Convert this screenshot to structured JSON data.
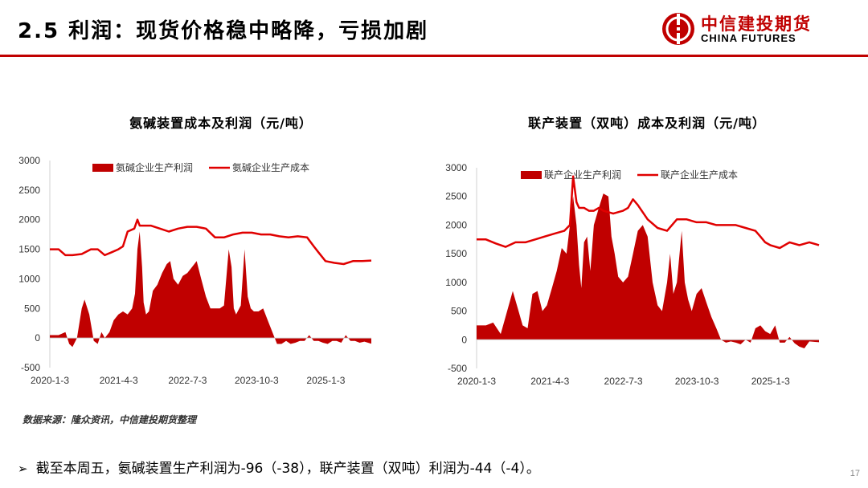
{
  "header": {
    "title": "2.5 利润：现货价格稳中略降，亏损加剧",
    "logo_cn": "中信建投期货",
    "logo_en": "CHINA FUTURES",
    "accent_color": "#c00000"
  },
  "chart_data": [
    {
      "type": "area",
      "title": "氨碱装置成本及利润（元/吨）",
      "xlabel": "",
      "ylabel": "",
      "ylim": [
        -500,
        3000
      ],
      "yticks": [
        "3000",
        "2500",
        "2000",
        "1500",
        "1000",
        "500",
        "0",
        "-500"
      ],
      "xticks": [
        "2020-1-3",
        "2021-4-3",
        "2022-7-3",
        "2023-10-3",
        "2025-1-3"
      ],
      "xrange": [
        "2020-01-03",
        "2025-10-31"
      ],
      "legend_position": "top",
      "series": [
        {
          "name": "氨碱企业生产利润",
          "kind": "area",
          "color": "#c00000",
          "x": [
            "2020-01-03",
            "2020-03-01",
            "2020-04-15",
            "2020-05-10",
            "2020-06-01",
            "2020-07-01",
            "2020-08-01",
            "2020-08-20",
            "2020-09-20",
            "2020-10-20",
            "2020-11-15",
            "2020-12-10",
            "2021-01-01",
            "2021-02-01",
            "2021-03-01",
            "2021-04-01",
            "2021-05-01",
            "2021-06-01",
            "2021-07-01",
            "2021-07-20",
            "2021-08-05",
            "2021-08-20",
            "2021-09-05",
            "2021-09-15",
            "2021-10-01",
            "2021-10-20",
            "2021-11-15",
            "2021-12-15",
            "2022-01-15",
            "2022-02-15",
            "2022-03-10",
            "2022-04-01",
            "2022-05-01",
            "2022-06-01",
            "2022-07-01",
            "2022-08-01",
            "2022-09-01",
            "2022-10-01",
            "2022-11-01",
            "2022-12-01",
            "2023-01-01",
            "2023-02-01",
            "2023-03-01",
            "2023-04-01",
            "2023-04-20",
            "2023-05-05",
            "2023-05-20",
            "2023-06-20",
            "2023-07-15",
            "2023-08-05",
            "2023-08-25",
            "2023-09-15",
            "2023-10-15",
            "2023-11-15",
            "2023-12-15",
            "2024-01-15",
            "2024-02-15",
            "2024-03-15",
            "2024-04-15",
            "2024-05-15",
            "2024-06-15",
            "2024-07-15",
            "2024-08-15",
            "2024-09-15",
            "2024-10-15",
            "2024-11-15",
            "2024-12-15",
            "2025-01-15",
            "2025-02-15",
            "2025-03-15",
            "2025-04-15",
            "2025-05-15",
            "2025-06-15",
            "2025-07-15",
            "2025-08-15",
            "2025-09-15",
            "2025-10-31"
          ],
          "values": [
            50,
            50,
            100,
            -100,
            -150,
            0,
            500,
            650,
            400,
            -50,
            -100,
            100,
            0,
            100,
            300,
            400,
            450,
            400,
            500,
            750,
            1500,
            1800,
            1200,
            600,
            400,
            450,
            800,
            900,
            1100,
            1250,
            1300,
            1000,
            900,
            1050,
            1100,
            1200,
            1300,
            1000,
            700,
            500,
            500,
            500,
            550,
            1500,
            1200,
            500,
            400,
            550,
            1500,
            700,
            500,
            450,
            450,
            500,
            300,
            100,
            -100,
            -100,
            -50,
            -100,
            -80,
            -50,
            -50,
            50,
            -50,
            -50,
            -80,
            -100,
            -50,
            -50,
            -80,
            50,
            -50,
            -50,
            -80,
            -60,
            -96
          ]
        },
        {
          "name": "氨碱企业生产成本",
          "kind": "line",
          "color": "#e00000",
          "x": [
            "2020-01-03",
            "2020-03-01",
            "2020-04-15",
            "2020-06-01",
            "2020-08-01",
            "2020-10-01",
            "2020-11-15",
            "2021-01-01",
            "2021-02-15",
            "2021-04-01",
            "2021-05-01",
            "2021-06-01",
            "2021-07-15",
            "2021-08-05",
            "2021-08-20",
            "2021-09-15",
            "2021-11-01",
            "2022-01-01",
            "2022-03-01",
            "2022-05-01",
            "2022-07-01",
            "2022-09-01",
            "2022-11-01",
            "2023-01-01",
            "2023-03-01",
            "2023-05-01",
            "2023-07-01",
            "2023-09-01",
            "2023-11-01",
            "2024-01-01",
            "2024-03-01",
            "2024-05-01",
            "2024-07-01",
            "2024-09-01",
            "2024-10-15",
            "2024-11-15",
            "2025-01-01",
            "2025-03-01",
            "2025-05-01",
            "2025-07-01",
            "2025-09-01",
            "2025-10-31"
          ],
          "values": [
            1500,
            1500,
            1400,
            1400,
            1420,
            1500,
            1500,
            1400,
            1450,
            1500,
            1550,
            1800,
            1850,
            2000,
            1900,
            1900,
            1900,
            1850,
            1800,
            1850,
            1880,
            1880,
            1850,
            1700,
            1700,
            1750,
            1780,
            1780,
            1750,
            1750,
            1720,
            1700,
            1720,
            1700,
            1550,
            1450,
            1300,
            1270,
            1250,
            1300,
            1300,
            1310
          ]
        }
      ]
    },
    {
      "type": "area",
      "title": "联产装置（双吨）成本及利润（元/吨）",
      "xlabel": "",
      "ylabel": "",
      "ylim": [
        -500,
        3000
      ],
      "yticks": [
        "3000",
        "2500",
        "2000",
        "1500",
        "1000",
        "500",
        "0",
        "-500"
      ],
      "xticks": [
        "2020-1-3",
        "2021-4-3",
        "2022-7-3",
        "2023-10-3",
        "2025-1-3"
      ],
      "xrange": [
        "2020-01-03",
        "2025-10-31"
      ],
      "legend_position": "top",
      "series": [
        {
          "name": "联产企业生产利润",
          "kind": "area",
          "color": "#c00000",
          "x": [
            "2020-01-03",
            "2020-03-01",
            "2020-04-15",
            "2020-06-01",
            "2020-07-01",
            "2020-08-15",
            "2020-09-15",
            "2020-10-15",
            "2020-11-15",
            "2020-12-15",
            "2021-01-15",
            "2021-02-15",
            "2021-03-15",
            "2021-04-15",
            "2021-05-15",
            "2021-06-15",
            "2021-07-15",
            "2021-08-05",
            "2021-08-25",
            "2021-09-15",
            "2021-10-01",
            "2021-10-15",
            "2021-11-01",
            "2021-11-20",
            "2021-12-10",
            "2022-01-01",
            "2022-02-01",
            "2022-03-01",
            "2022-04-01",
            "2022-04-20",
            "2022-05-10",
            "2022-06-01",
            "2022-07-01",
            "2022-08-01",
            "2022-09-01",
            "2022-10-01",
            "2022-11-01",
            "2022-12-01",
            "2023-01-01",
            "2023-02-01",
            "2023-03-01",
            "2023-04-01",
            "2023-04-20",
            "2023-05-10",
            "2023-06-01",
            "2023-07-01",
            "2023-07-20",
            "2023-08-10",
            "2023-09-01",
            "2023-10-01",
            "2023-11-01",
            "2023-12-01",
            "2024-01-01",
            "2024-02-01",
            "2024-03-01",
            "2024-04-01",
            "2024-05-01",
            "2024-06-01",
            "2024-07-01",
            "2024-08-01",
            "2024-09-01",
            "2024-10-01",
            "2024-11-01",
            "2024-12-01",
            "2025-01-01",
            "2025-02-01",
            "2025-03-01",
            "2025-04-01",
            "2025-05-01",
            "2025-06-01",
            "2025-07-01",
            "2025-08-01",
            "2025-09-01",
            "2025-10-31"
          ],
          "values": [
            250,
            250,
            300,
            100,
            400,
            850,
            550,
            250,
            200,
            800,
            850,
            500,
            600,
            900,
            1200,
            1600,
            1500,
            2000,
            2500,
            2000,
            1300,
            900,
            1700,
            1800,
            1200,
            2000,
            2300,
            2550,
            2500,
            1800,
            1500,
            1100,
            1000,
            1100,
            1500,
            1900,
            2000,
            1800,
            1000,
            600,
            500,
            1000,
            1500,
            800,
            1000,
            1900,
            1000,
            700,
            500,
            800,
            900,
            650,
            400,
            200,
            0,
            -50,
            -30,
            -50,
            -80,
            0,
            -50,
            200,
            250,
            150,
            100,
            250,
            -50,
            -50,
            50,
            -60,
            -120,
            -150,
            -30,
            -44
          ]
        },
        {
          "name": "联产企业生产成本",
          "kind": "line",
          "color": "#e00000",
          "x": [
            "2020-01-03",
            "2020-03-01",
            "2020-05-01",
            "2020-07-01",
            "2020-09-01",
            "2020-11-01",
            "2021-01-01",
            "2021-03-01",
            "2021-05-01",
            "2021-07-01",
            "2021-08-05",
            "2021-08-25",
            "2021-09-15",
            "2021-10-01",
            "2021-11-01",
            "2021-12-01",
            "2022-01-01",
            "2022-02-01",
            "2022-03-01",
            "2022-05-01",
            "2022-07-01",
            "2022-08-01",
            "2022-09-01",
            "2022-10-01",
            "2022-12-01",
            "2023-02-01",
            "2023-04-01",
            "2023-06-01",
            "2023-08-01",
            "2023-10-01",
            "2023-12-01",
            "2024-02-01",
            "2024-04-01",
            "2024-06-01",
            "2024-08-01",
            "2024-10-01",
            "2024-11-01",
            "2024-12-01",
            "2025-01-01",
            "2025-03-01",
            "2025-05-01",
            "2025-07-01",
            "2025-09-01",
            "2025-10-31"
          ],
          "values": [
            1750,
            1750,
            1680,
            1620,
            1700,
            1700,
            1750,
            1800,
            1850,
            1900,
            2000,
            2850,
            2400,
            2300,
            2300,
            2250,
            2250,
            2300,
            2250,
            2200,
            2250,
            2300,
            2450,
            2350,
            2100,
            1950,
            1900,
            2100,
            2100,
            2050,
            2050,
            2000,
            2000,
            2000,
            1950,
            1900,
            1800,
            1700,
            1650,
            1600,
            1700,
            1650,
            1700,
            1650
          ]
        }
      ]
    }
  ],
  "footer": {
    "source": "数据来源：隆众资讯，中信建投期货整理",
    "bullet_text": "截至本周五，氨碱装置生产利润为-96（-38），联产装置（双吨）利润为-44（-4）。",
    "page_number": "17"
  }
}
